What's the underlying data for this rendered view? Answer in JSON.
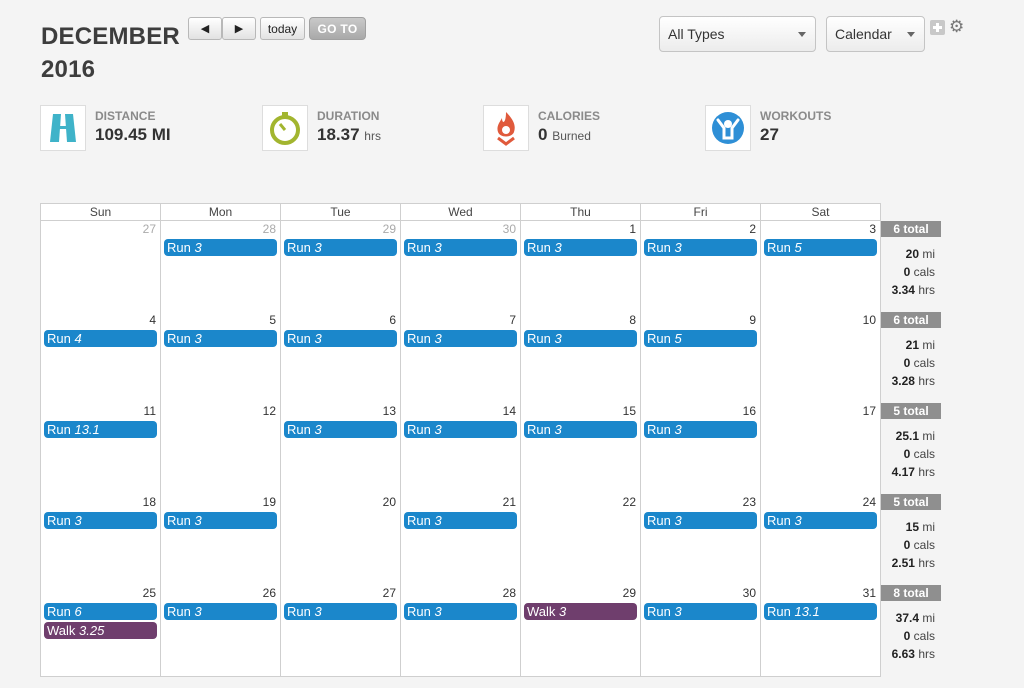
{
  "header": {
    "month": "DECEMBER",
    "year": "2016"
  },
  "toolbar": {
    "prev_icon": "◀",
    "next_icon": "▶",
    "today_label": "today",
    "goto_label": "GO TO",
    "type_filter": "All Types",
    "view_select": "Calendar"
  },
  "stats": [
    {
      "label": "DISTANCE",
      "value": "109.45 MI",
      "unit": "",
      "icon": "road-icon",
      "color": "#3fb3c9"
    },
    {
      "label": "DURATION",
      "value": "18.37",
      "unit": "hrs",
      "icon": "stopwatch-icon",
      "color": "#a2b52f"
    },
    {
      "label": "CALORIES",
      "value": "0",
      "unit": "Burned",
      "icon": "flame-icon",
      "color": "#e05a3c"
    },
    {
      "label": "WORKOUTS",
      "value": "27",
      "unit": "",
      "icon": "person-icon",
      "color": "#2e8fd6"
    }
  ],
  "weekdays": [
    "Sun",
    "Mon",
    "Tue",
    "Wed",
    "Thu",
    "Fri",
    "Sat"
  ],
  "colors": {
    "run": "#1b87cb",
    "walk": "#6f3e6d",
    "total_badge": "#8f8f8f"
  },
  "weeks": [
    {
      "days": [
        {
          "num": "27",
          "other": true,
          "events": []
        },
        {
          "num": "28",
          "other": true,
          "events": [
            {
              "type": "Run",
              "val": "3"
            }
          ]
        },
        {
          "num": "29",
          "other": true,
          "events": [
            {
              "type": "Run",
              "val": "3"
            }
          ]
        },
        {
          "num": "30",
          "other": true,
          "events": [
            {
              "type": "Run",
              "val": "3"
            }
          ]
        },
        {
          "num": "1",
          "events": [
            {
              "type": "Run",
              "val": "3"
            }
          ]
        },
        {
          "num": "2",
          "events": [
            {
              "type": "Run",
              "val": "3"
            }
          ]
        },
        {
          "num": "3",
          "events": [
            {
              "type": "Run",
              "val": "5"
            }
          ]
        }
      ],
      "total": {
        "count": "6 total",
        "mi": "20",
        "cals": "0",
        "hrs": "3.34"
      }
    },
    {
      "days": [
        {
          "num": "4",
          "events": [
            {
              "type": "Run",
              "val": "4"
            }
          ]
        },
        {
          "num": "5",
          "events": [
            {
              "type": "Run",
              "val": "3"
            }
          ]
        },
        {
          "num": "6",
          "events": [
            {
              "type": "Run",
              "val": "3"
            }
          ]
        },
        {
          "num": "7",
          "events": [
            {
              "type": "Run",
              "val": "3"
            }
          ]
        },
        {
          "num": "8",
          "events": [
            {
              "type": "Run",
              "val": "3"
            }
          ]
        },
        {
          "num": "9",
          "events": [
            {
              "type": "Run",
              "val": "5"
            }
          ]
        },
        {
          "num": "10",
          "events": []
        }
      ],
      "total": {
        "count": "6 total",
        "mi": "21",
        "cals": "0",
        "hrs": "3.28"
      }
    },
    {
      "days": [
        {
          "num": "11",
          "events": [
            {
              "type": "Run",
              "val": "13.1"
            }
          ]
        },
        {
          "num": "12",
          "events": []
        },
        {
          "num": "13",
          "events": [
            {
              "type": "Run",
              "val": "3"
            }
          ]
        },
        {
          "num": "14",
          "events": [
            {
              "type": "Run",
              "val": "3"
            }
          ]
        },
        {
          "num": "15",
          "events": [
            {
              "type": "Run",
              "val": "3"
            }
          ]
        },
        {
          "num": "16",
          "events": [
            {
              "type": "Run",
              "val": "3"
            }
          ]
        },
        {
          "num": "17",
          "events": []
        }
      ],
      "total": {
        "count": "5 total",
        "mi": "25.1",
        "cals": "0",
        "hrs": "4.17"
      }
    },
    {
      "days": [
        {
          "num": "18",
          "events": [
            {
              "type": "Run",
              "val": "3"
            }
          ]
        },
        {
          "num": "19",
          "events": [
            {
              "type": "Run",
              "val": "3"
            }
          ]
        },
        {
          "num": "20",
          "events": []
        },
        {
          "num": "21",
          "events": [
            {
              "type": "Run",
              "val": "3"
            }
          ]
        },
        {
          "num": "22",
          "events": []
        },
        {
          "num": "23",
          "events": [
            {
              "type": "Run",
              "val": "3"
            }
          ]
        },
        {
          "num": "24",
          "events": [
            {
              "type": "Run",
              "val": "3"
            }
          ]
        }
      ],
      "total": {
        "count": "5 total",
        "mi": "15",
        "cals": "0",
        "hrs": "2.51"
      }
    },
    {
      "days": [
        {
          "num": "25",
          "events": [
            {
              "type": "Run",
              "val": "6"
            },
            {
              "type": "Walk",
              "val": "3.25"
            }
          ]
        },
        {
          "num": "26",
          "events": [
            {
              "type": "Run",
              "val": "3"
            }
          ]
        },
        {
          "num": "27",
          "events": [
            {
              "type": "Run",
              "val": "3"
            }
          ]
        },
        {
          "num": "28",
          "events": [
            {
              "type": "Run",
              "val": "3"
            }
          ]
        },
        {
          "num": "29",
          "events": [
            {
              "type": "Walk",
              "val": "3"
            }
          ]
        },
        {
          "num": "30",
          "events": [
            {
              "type": "Run",
              "val": "3"
            }
          ]
        },
        {
          "num": "31",
          "events": [
            {
              "type": "Run",
              "val": "13.1"
            }
          ]
        }
      ],
      "total": {
        "count": "8 total",
        "mi": "37.4",
        "cals": "0",
        "hrs": "6.63"
      }
    }
  ],
  "total_units": {
    "mi": "mi",
    "cals": "cals",
    "hrs": "hrs"
  }
}
